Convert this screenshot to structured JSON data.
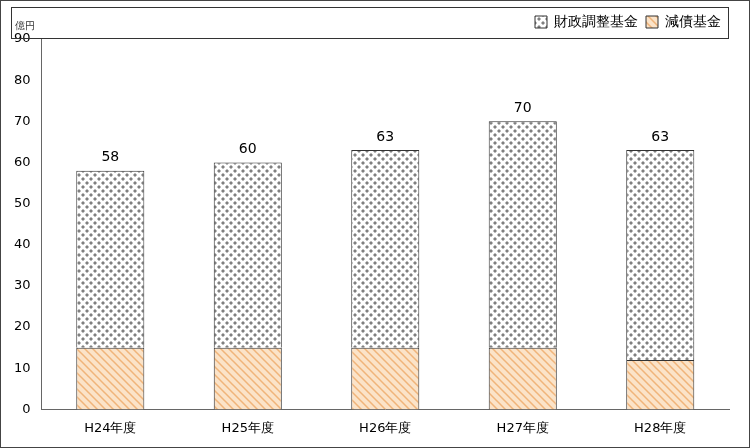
{
  "chart_data": {
    "type": "bar",
    "ylabel": "億円",
    "categories": [
      "H24年度",
      "H25年度",
      "H26年度",
      "H27年度",
      "H28年度"
    ],
    "series": [
      {
        "name": "減債基金",
        "color": "#f0b47a",
        "values": [
          15,
          15,
          15,
          15,
          12
        ]
      },
      {
        "name": "財政調整基金",
        "color": "#808080",
        "values": [
          43,
          45,
          48,
          55,
          51
        ]
      }
    ],
    "totals": [
      58,
      60,
      63,
      70,
      63
    ],
    "stacked": true,
    "ylim": [
      0,
      90
    ],
    "yticks": [
      0,
      10,
      20,
      30,
      40,
      50,
      60,
      70,
      80,
      90
    ],
    "grid": false,
    "legend": "top-right"
  }
}
